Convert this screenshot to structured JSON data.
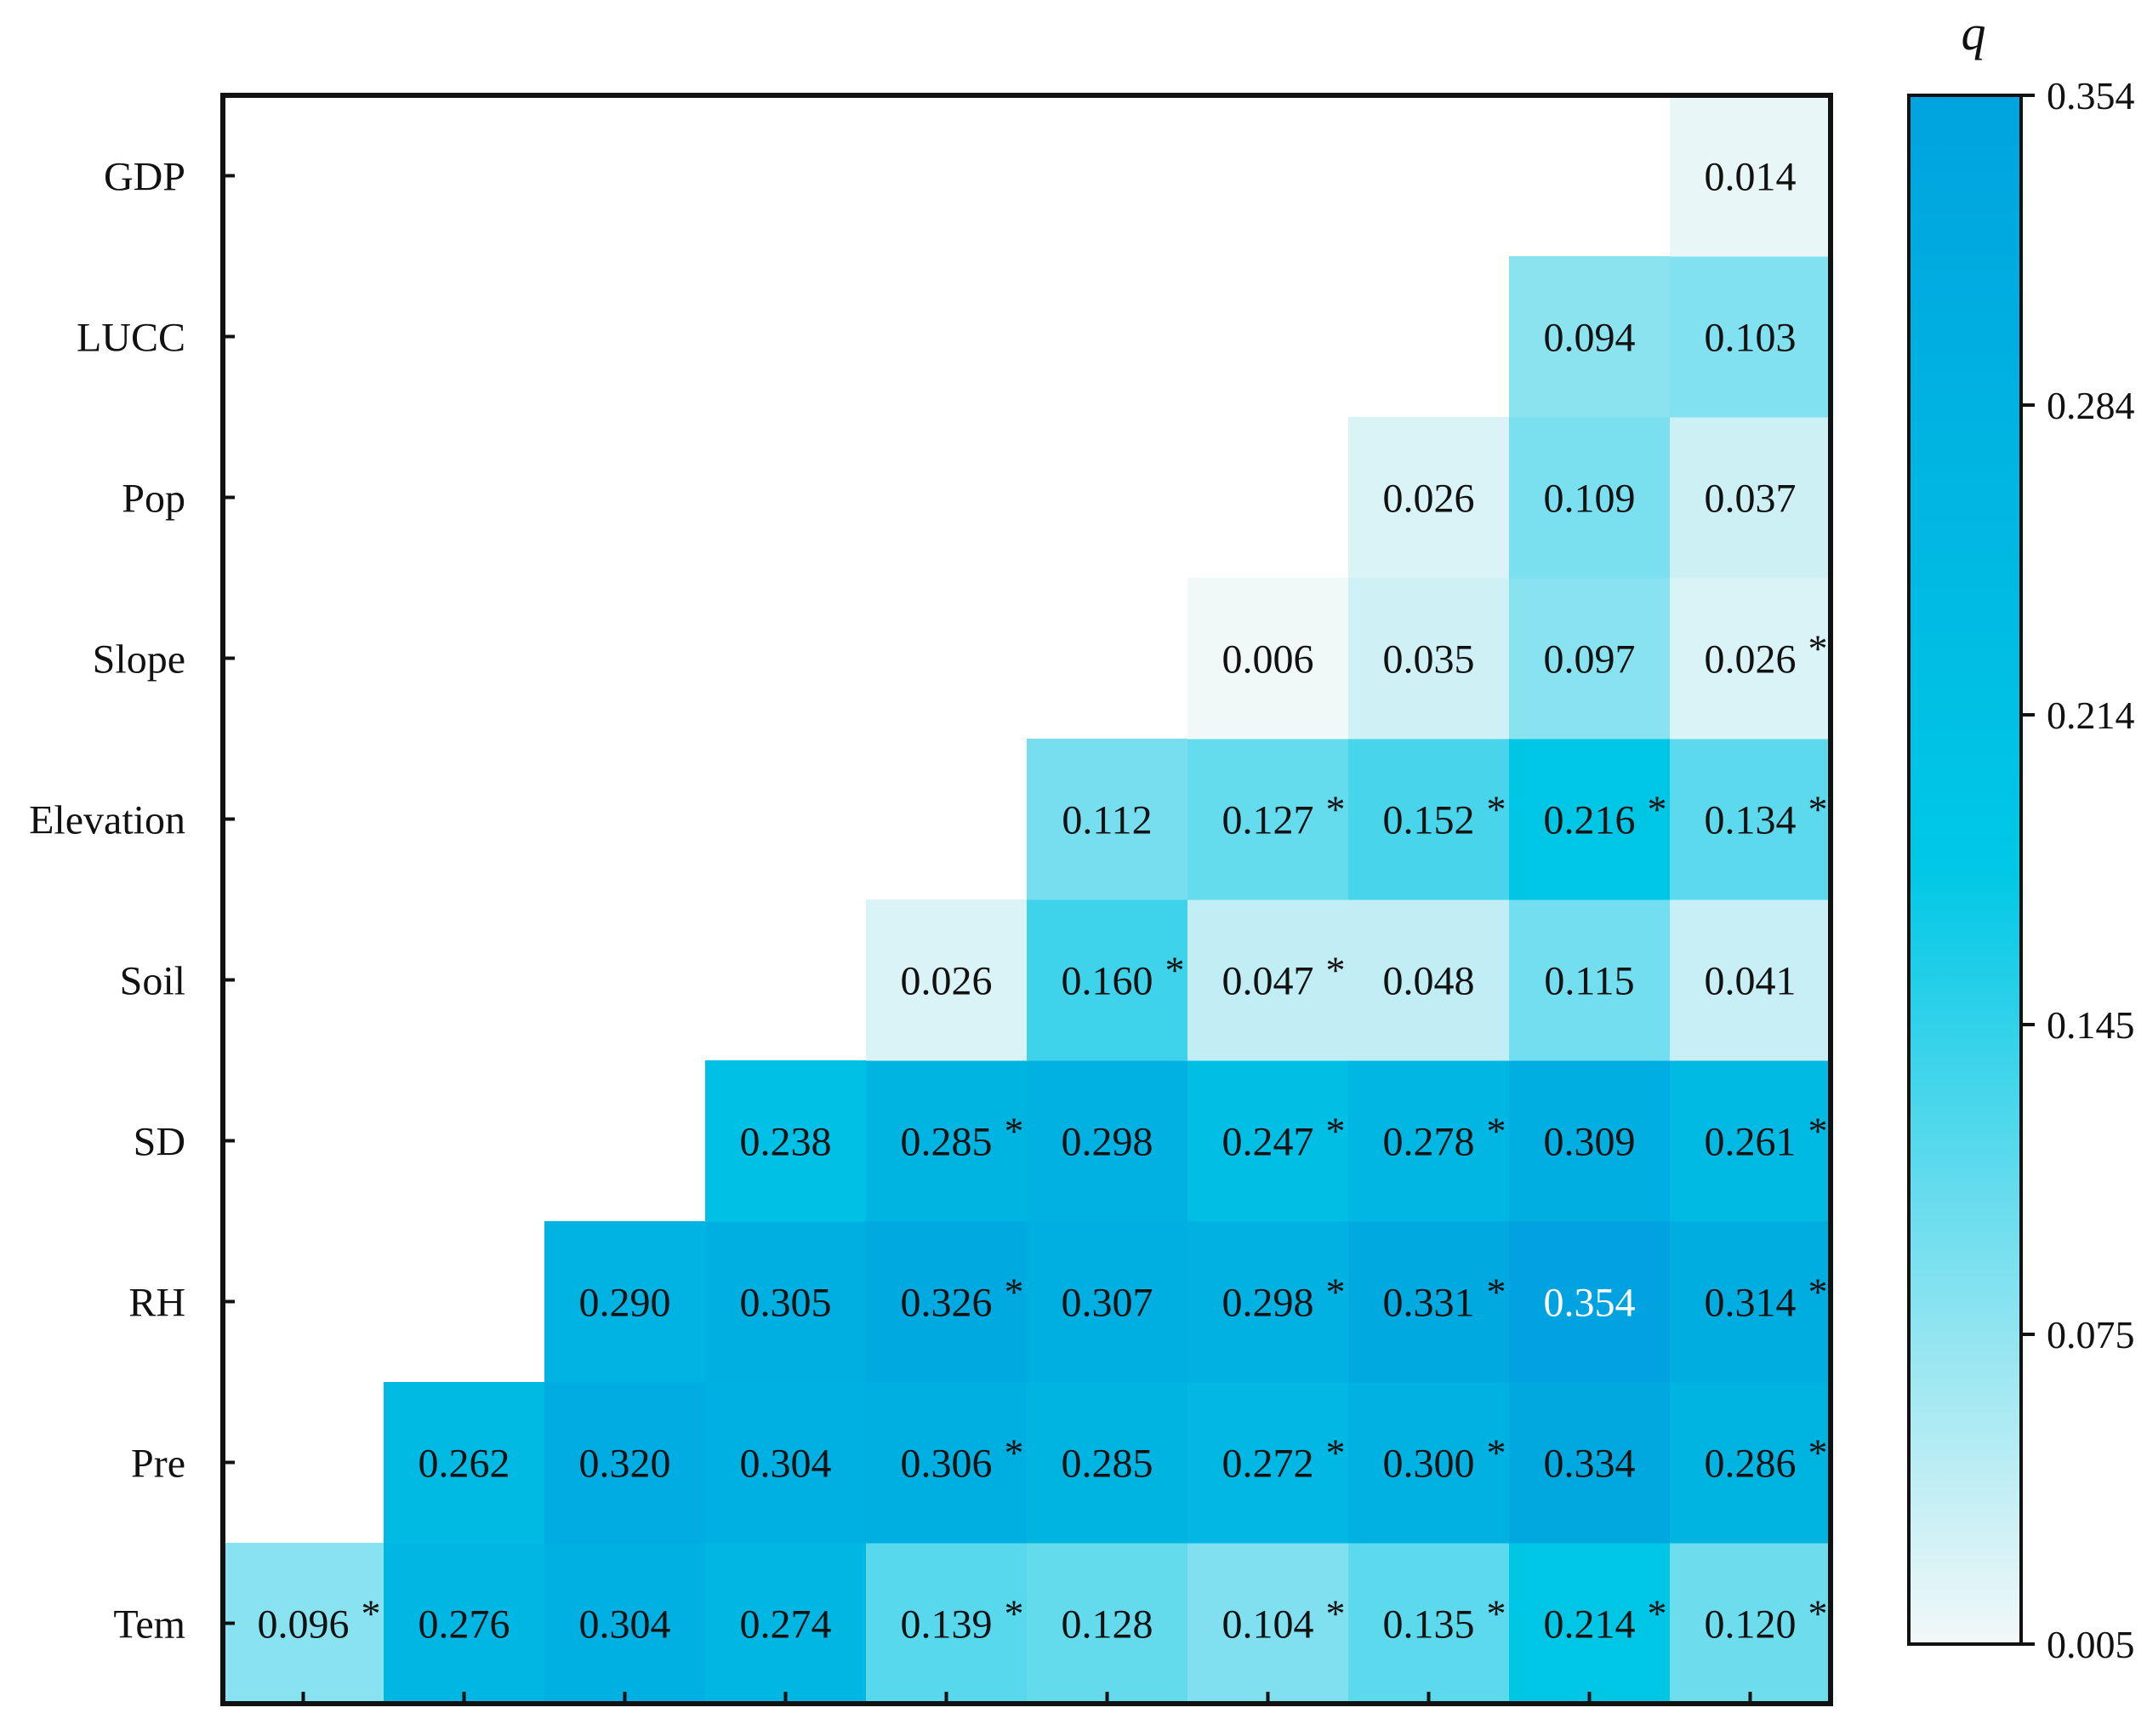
{
  "chart_data": {
    "type": "heatmap",
    "title": "",
    "xlabel": "",
    "ylabel": "",
    "factors": [
      "Tem",
      "Pre",
      "RH",
      "SD",
      "Soil",
      "Elevation",
      "Slope",
      "Pop",
      "LUCC",
      "GDP"
    ],
    "cells": [
      {
        "row": "Tem",
        "col": "Tem",
        "value": 0.096,
        "label": "0.096",
        "sig": true
      },
      {
        "row": "Tem",
        "col": "Pre",
        "value": 0.276,
        "label": "0.276",
        "sig": false
      },
      {
        "row": "Tem",
        "col": "RH",
        "value": 0.304,
        "label": "0.304",
        "sig": false
      },
      {
        "row": "Tem",
        "col": "SD",
        "value": 0.274,
        "label": "0.274",
        "sig": false
      },
      {
        "row": "Tem",
        "col": "Soil",
        "value": 0.139,
        "label": "0.139",
        "sig": true
      },
      {
        "row": "Tem",
        "col": "Elevation",
        "value": 0.128,
        "label": "0.128",
        "sig": false
      },
      {
        "row": "Tem",
        "col": "Slope",
        "value": 0.104,
        "label": "0.104",
        "sig": true
      },
      {
        "row": "Tem",
        "col": "Pop",
        "value": 0.135,
        "label": "0.135",
        "sig": true
      },
      {
        "row": "Tem",
        "col": "LUCC",
        "value": 0.214,
        "label": "0.214",
        "sig": true
      },
      {
        "row": "Tem",
        "col": "GDP",
        "value": 0.12,
        "label": "0.120",
        "sig": true
      },
      {
        "row": "Pre",
        "col": "Pre",
        "value": 0.262,
        "label": "0.262",
        "sig": false
      },
      {
        "row": "Pre",
        "col": "RH",
        "value": 0.32,
        "label": "0.320",
        "sig": false
      },
      {
        "row": "Pre",
        "col": "SD",
        "value": 0.304,
        "label": "0.304",
        "sig": false
      },
      {
        "row": "Pre",
        "col": "Soil",
        "value": 0.306,
        "label": "0.306",
        "sig": true
      },
      {
        "row": "Pre",
        "col": "Elevation",
        "value": 0.285,
        "label": "0.285",
        "sig": false
      },
      {
        "row": "Pre",
        "col": "Slope",
        "value": 0.272,
        "label": "0.272",
        "sig": true
      },
      {
        "row": "Pre",
        "col": "Pop",
        "value": 0.3,
        "label": "0.300",
        "sig": true
      },
      {
        "row": "Pre",
        "col": "LUCC",
        "value": 0.334,
        "label": "0.334",
        "sig": false
      },
      {
        "row": "Pre",
        "col": "GDP",
        "value": 0.286,
        "label": "0.286",
        "sig": true
      },
      {
        "row": "RH",
        "col": "RH",
        "value": 0.29,
        "label": "0.290",
        "sig": false
      },
      {
        "row": "RH",
        "col": "SD",
        "value": 0.305,
        "label": "0.305",
        "sig": false
      },
      {
        "row": "RH",
        "col": "Soil",
        "value": 0.326,
        "label": "0.326",
        "sig": true
      },
      {
        "row": "RH",
        "col": "Elevation",
        "value": 0.307,
        "label": "0.307",
        "sig": false
      },
      {
        "row": "RH",
        "col": "Slope",
        "value": 0.298,
        "label": "0.298",
        "sig": true
      },
      {
        "row": "RH",
        "col": "Pop",
        "value": 0.331,
        "label": "0.331",
        "sig": true
      },
      {
        "row": "RH",
        "col": "LUCC",
        "value": 0.354,
        "label": "0.354",
        "sig": false
      },
      {
        "row": "RH",
        "col": "GDP",
        "value": 0.314,
        "label": "0.314",
        "sig": true
      },
      {
        "row": "SD",
        "col": "SD",
        "value": 0.238,
        "label": "0.238",
        "sig": false
      },
      {
        "row": "SD",
        "col": "Soil",
        "value": 0.285,
        "label": "0.285",
        "sig": true
      },
      {
        "row": "SD",
        "col": "Elevation",
        "value": 0.298,
        "label": "0.298",
        "sig": false
      },
      {
        "row": "SD",
        "col": "Slope",
        "value": 0.247,
        "label": "0.247",
        "sig": true
      },
      {
        "row": "SD",
        "col": "Pop",
        "value": 0.278,
        "label": "0.278",
        "sig": true
      },
      {
        "row": "SD",
        "col": "LUCC",
        "value": 0.309,
        "label": "0.309",
        "sig": false
      },
      {
        "row": "SD",
        "col": "GDP",
        "value": 0.261,
        "label": "0.261",
        "sig": true
      },
      {
        "row": "Soil",
        "col": "Soil",
        "value": 0.026,
        "label": "0.026",
        "sig": false
      },
      {
        "row": "Soil",
        "col": "Elevation",
        "value": 0.16,
        "label": "0.160",
        "sig": true
      },
      {
        "row": "Soil",
        "col": "Slope",
        "value": 0.047,
        "label": "0.047",
        "sig": true
      },
      {
        "row": "Soil",
        "col": "Pop",
        "value": 0.048,
        "label": "0.048",
        "sig": false
      },
      {
        "row": "Soil",
        "col": "LUCC",
        "value": 0.115,
        "label": "0.115",
        "sig": false
      },
      {
        "row": "Soil",
        "col": "GDP",
        "value": 0.041,
        "label": "0.041",
        "sig": false
      },
      {
        "row": "Elevation",
        "col": "Elevation",
        "value": 0.112,
        "label": "0.112",
        "sig": false
      },
      {
        "row": "Elevation",
        "col": "Slope",
        "value": 0.127,
        "label": "0.127",
        "sig": true
      },
      {
        "row": "Elevation",
        "col": "Pop",
        "value": 0.152,
        "label": "0.152",
        "sig": true
      },
      {
        "row": "Elevation",
        "col": "LUCC",
        "value": 0.216,
        "label": "0.216",
        "sig": true
      },
      {
        "row": "Elevation",
        "col": "GDP",
        "value": 0.134,
        "label": "0.134",
        "sig": true
      },
      {
        "row": "Slope",
        "col": "Slope",
        "value": 0.006,
        "label": "0.006",
        "sig": false
      },
      {
        "row": "Slope",
        "col": "Pop",
        "value": 0.035,
        "label": "0.035",
        "sig": false
      },
      {
        "row": "Slope",
        "col": "LUCC",
        "value": 0.097,
        "label": "0.097",
        "sig": false
      },
      {
        "row": "Slope",
        "col": "GDP",
        "value": 0.026,
        "label": "0.026",
        "sig": true
      },
      {
        "row": "Pop",
        "col": "Pop",
        "value": 0.026,
        "label": "0.026",
        "sig": false
      },
      {
        "row": "Pop",
        "col": "LUCC",
        "value": 0.109,
        "label": "0.109",
        "sig": false
      },
      {
        "row": "Pop",
        "col": "GDP",
        "value": 0.037,
        "label": "0.037",
        "sig": false
      },
      {
        "row": "LUCC",
        "col": "LUCC",
        "value": 0.094,
        "label": "0.094",
        "sig": false
      },
      {
        "row": "LUCC",
        "col": "GDP",
        "value": 0.103,
        "label": "0.103",
        "sig": false
      },
      {
        "row": "GDP",
        "col": "GDP",
        "value": 0.014,
        "label": "0.014",
        "sig": false
      }
    ],
    "significance_marker": "*",
    "colorbar": {
      "title": "q",
      "min": 0.005,
      "max": 0.354,
      "ticks": [
        "0.354",
        "0.284",
        "0.214",
        "0.145",
        "0.075",
        "0.005"
      ],
      "color_low": "#f2f8f8",
      "color_mid": "#00c3e6",
      "color_high": "#00a3df"
    },
    "grid": false,
    "legend": "right"
  }
}
